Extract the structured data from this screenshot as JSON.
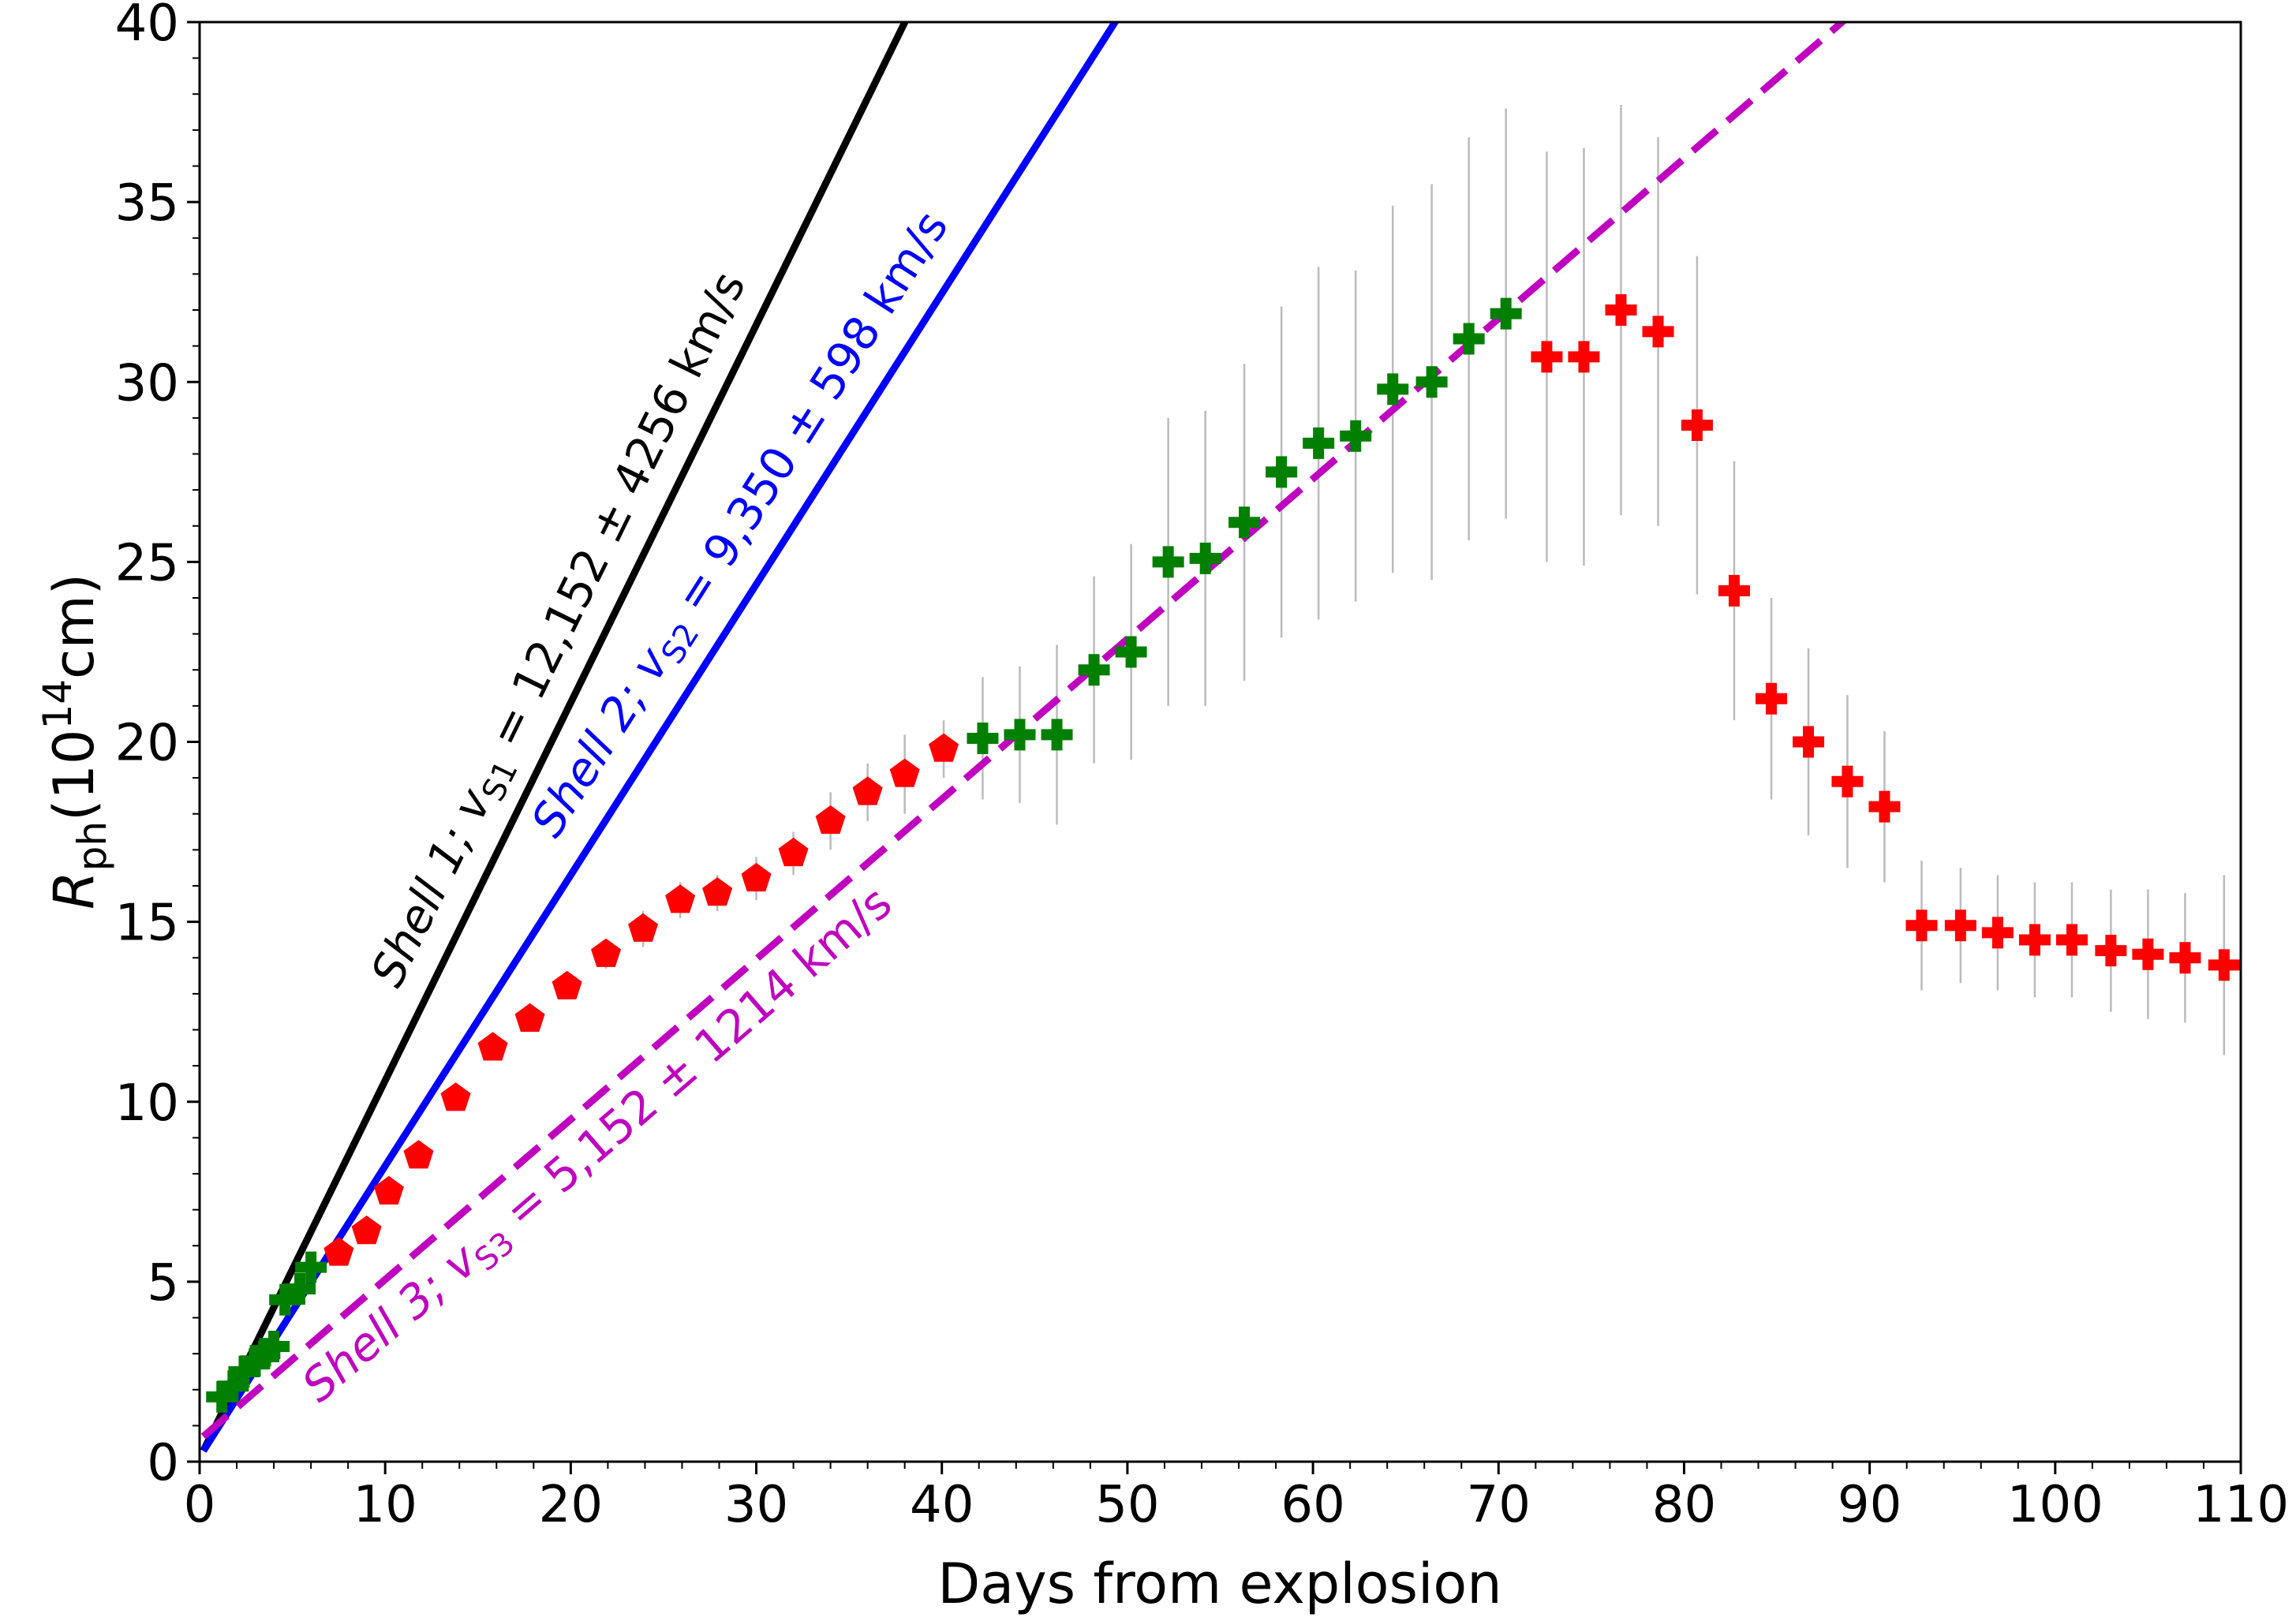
{
  "chart_data": {
    "type": "scatter",
    "title": "",
    "xlabel": "Days from explosion",
    "ylabel_main": "R",
    "ylabel_sub": "ph",
    "ylabel_paren_open": "(10",
    "ylabel_sup": "14",
    "ylabel_unit": "cm)",
    "xlim": [
      0,
      110
    ],
    "ylim": [
      0,
      40
    ],
    "xticks": [
      0,
      10,
      20,
      30,
      40,
      50,
      60,
      70,
      80,
      90,
      100,
      110
    ],
    "yticks": [
      0,
      5,
      10,
      15,
      20,
      25,
      30,
      35,
      40
    ],
    "grid": false,
    "colors": {
      "shell1": "#000000",
      "shell2": "#0000ff",
      "shell3": "#bf00bf",
      "green": "#007f00",
      "red": "#ff0000",
      "errorbar": "#bbbbbb"
    },
    "fits": [
      {
        "name": "shell1",
        "style": "solid",
        "x0": 0.2,
        "y0": 0.3,
        "slope": 1.05,
        "label_pre": "Shell 1; ",
        "label_v": "v",
        "label_sub": "S1",
        "label_post": " = 12,152 ± 4256 km/s"
      },
      {
        "name": "shell2",
        "style": "solid",
        "x0": 0.2,
        "y0": 0.3,
        "slope": 0.808,
        "label_pre": "Shell 2; ",
        "label_v": "v",
        "label_sub": "S2",
        "label_post": " = 9,350 ± 598 km/s"
      },
      {
        "name": "shell3",
        "style": "dashed",
        "x0": 0.2,
        "y0": 0.7,
        "slope": 0.445,
        "label_pre": "Shell 3; ",
        "label_v": "v",
        "label_sub": "S3",
        "label_post": " = 5,152 ± 1214 km/s"
      }
    ],
    "series": [
      {
        "name": "green-plus",
        "marker": "plus",
        "color": "green",
        "points": [
          {
            "x": 1.2,
            "y": 1.8,
            "err": 0
          },
          {
            "x": 1.8,
            "y": 2.1,
            "err": 0
          },
          {
            "x": 2.4,
            "y": 2.5,
            "err": 0
          },
          {
            "x": 3.0,
            "y": 2.8,
            "err": 0
          },
          {
            "x": 3.5,
            "y": 3.0,
            "err": 0
          },
          {
            "x": 4.0,
            "y": 3.2,
            "err": 0
          },
          {
            "x": 4.6,
            "y": 4.5,
            "err": 0
          },
          {
            "x": 5.4,
            "y": 4.8,
            "err": 0
          },
          {
            "x": 6.0,
            "y": 5.4,
            "err": 0
          },
          {
            "x": 42.2,
            "y": 20.1,
            "err": 1.7
          },
          {
            "x": 44.2,
            "y": 20.2,
            "err": 1.9
          },
          {
            "x": 46.2,
            "y": 20.2,
            "err": 2.5
          },
          {
            "x": 48.2,
            "y": 22.0,
            "err": 2.6
          },
          {
            "x": 50.2,
            "y": 22.5,
            "err": 3.0
          },
          {
            "x": 52.2,
            "y": 25.0,
            "err": 4.0
          },
          {
            "x": 54.2,
            "y": 25.1,
            "err": 4.1
          },
          {
            "x": 56.3,
            "y": 26.1,
            "err": 4.4
          },
          {
            "x": 58.3,
            "y": 27.5,
            "err": 4.6
          },
          {
            "x": 60.3,
            "y": 28.3,
            "err": 4.9
          },
          {
            "x": 62.3,
            "y": 28.5,
            "err": 4.6
          },
          {
            "x": 64.3,
            "y": 29.8,
            "err": 5.1
          },
          {
            "x": 66.4,
            "y": 30.0,
            "err": 5.5
          },
          {
            "x": 68.4,
            "y": 31.2,
            "err": 5.6
          },
          {
            "x": 70.4,
            "y": 31.9,
            "err": 5.7
          }
        ]
      },
      {
        "name": "red-pentagon",
        "marker": "pentagon",
        "color": "red",
        "points": [
          {
            "x": 7.5,
            "y": 5.8,
            "err": 0
          },
          {
            "x": 9.0,
            "y": 6.4,
            "err": 0
          },
          {
            "x": 10.2,
            "y": 7.5,
            "err": 0
          },
          {
            "x": 11.8,
            "y": 8.5,
            "err": 0
          },
          {
            "x": 13.8,
            "y": 10.1,
            "err": 0
          },
          {
            "x": 15.8,
            "y": 11.5,
            "err": 0.2
          },
          {
            "x": 17.8,
            "y": 12.3,
            "err": 0.3
          },
          {
            "x": 19.8,
            "y": 13.2,
            "err": 0.3
          },
          {
            "x": 21.9,
            "y": 14.1,
            "err": 0.4
          },
          {
            "x": 23.9,
            "y": 14.8,
            "err": 0.5
          },
          {
            "x": 25.9,
            "y": 15.6,
            "err": 0.5
          },
          {
            "x": 27.9,
            "y": 15.8,
            "err": 0.5
          },
          {
            "x": 30.0,
            "y": 16.2,
            "err": 0.6
          },
          {
            "x": 32.0,
            "y": 16.9,
            "err": 0.6
          },
          {
            "x": 34.0,
            "y": 17.8,
            "err": 0.8
          },
          {
            "x": 36.0,
            "y": 18.6,
            "err": 0.8
          },
          {
            "x": 38.0,
            "y": 19.1,
            "err": 1.1
          },
          {
            "x": 40.1,
            "y": 19.8,
            "err": 0.8
          }
        ]
      },
      {
        "name": "red-plus",
        "marker": "plus",
        "color": "red",
        "points": [
          {
            "x": 72.6,
            "y": 30.7,
            "err": 5.7
          },
          {
            "x": 74.6,
            "y": 30.7,
            "err": 5.8
          },
          {
            "x": 76.6,
            "y": 32.0,
            "err": 5.7
          },
          {
            "x": 78.6,
            "y": 31.4,
            "err": 5.4
          },
          {
            "x": 80.7,
            "y": 28.8,
            "err": 4.7
          },
          {
            "x": 82.7,
            "y": 24.2,
            "err": 3.6
          },
          {
            "x": 84.7,
            "y": 21.2,
            "err": 2.8
          },
          {
            "x": 86.7,
            "y": 20.0,
            "err": 2.6
          },
          {
            "x": 88.8,
            "y": 18.9,
            "err": 2.4
          },
          {
            "x": 90.8,
            "y": 18.2,
            "err": 2.1
          },
          {
            "x": 92.8,
            "y": 14.9,
            "err": 1.8
          },
          {
            "x": 94.9,
            "y": 14.9,
            "err": 1.6
          },
          {
            "x": 96.9,
            "y": 14.7,
            "err": 1.6
          },
          {
            "x": 98.9,
            "y": 14.5,
            "err": 1.6
          },
          {
            "x": 100.9,
            "y": 14.5,
            "err": 1.6
          },
          {
            "x": 103.0,
            "y": 14.2,
            "err": 1.7
          },
          {
            "x": 105.0,
            "y": 14.1,
            "err": 1.8
          },
          {
            "x": 107.0,
            "y": 14.0,
            "err": 1.8
          },
          {
            "x": 109.1,
            "y": 13.8,
            "err": 2.5
          }
        ]
      }
    ]
  }
}
